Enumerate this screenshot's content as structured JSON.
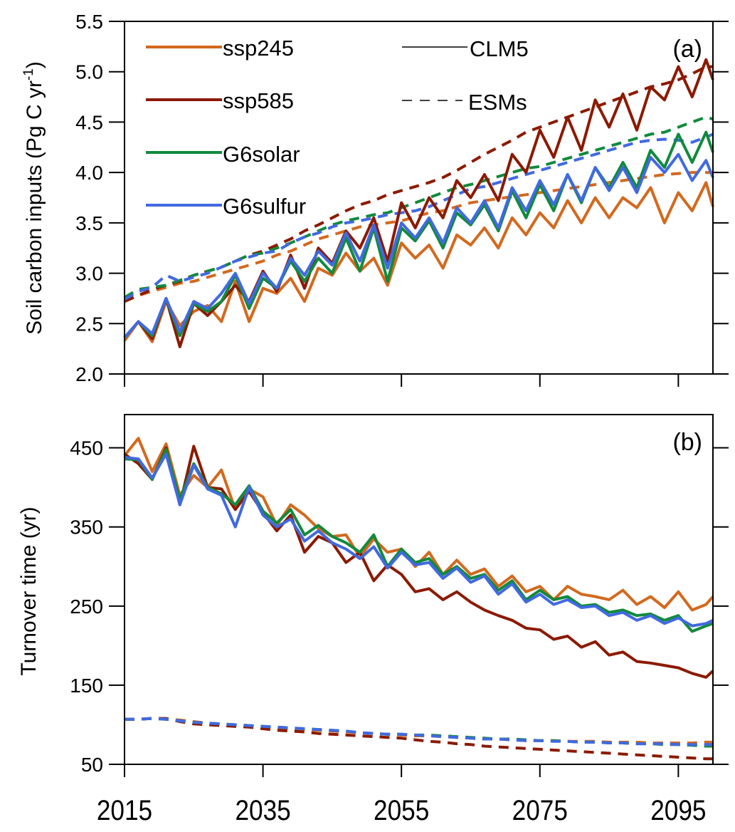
{
  "chart_data": [
    {
      "type": "line",
      "panel_label": "(a)",
      "title": "",
      "xlabel": "",
      "ylabel": "Soil carbon inputs (Pg C yr",
      "ylabel_superscript": "-1",
      "ylabel_suffix": ")",
      "xlim": [
        2015,
        2100
      ],
      "ylim": [
        2.0,
        5.5
      ],
      "yticks": [
        2.0,
        2.5,
        3.0,
        3.5,
        4.0,
        4.5,
        5.0,
        5.5
      ],
      "ytick_labels": [
        "2.0",
        "2.5",
        "3.0",
        "3.5",
        "4.0",
        "4.5",
        "5.0",
        "5.5"
      ],
      "xticks": [
        2015,
        2035,
        2055,
        2075,
        2095
      ],
      "grid": false,
      "legend": {
        "placement": "top-left",
        "scenarios": [
          {
            "label": "ssp245",
            "color": "#D2691E"
          },
          {
            "label": "ssp585",
            "color": "#8B1A00"
          },
          {
            "label": "G6solar",
            "color": "#118A3C"
          },
          {
            "label": "G6sulfur",
            "color": "#4169E1"
          }
        ],
        "models": [
          {
            "label": "CLM5",
            "style": "solid"
          },
          {
            "label": "ESMs",
            "style": "dashed"
          }
        ]
      },
      "x": [
        2015,
        2017,
        2019,
        2021,
        2023,
        2025,
        2027,
        2029,
        2031,
        2033,
        2035,
        2037,
        2039,
        2041,
        2043,
        2045,
        2047,
        2049,
        2051,
        2053,
        2055,
        2057,
        2059,
        2061,
        2063,
        2065,
        2067,
        2069,
        2071,
        2073,
        2075,
        2077,
        2079,
        2081,
        2083,
        2085,
        2087,
        2089,
        2091,
        2093,
        2095,
        2097,
        2099,
        2100
      ],
      "series": [
        {
          "name": "ssp245",
          "model": "CLM5",
          "color": "#D2691E",
          "style": "solid",
          "values": [
            2.33,
            2.52,
            2.32,
            2.72,
            2.48,
            2.62,
            2.68,
            2.52,
            2.92,
            2.52,
            2.85,
            2.8,
            2.95,
            2.72,
            3.05,
            2.98,
            3.2,
            3.02,
            3.15,
            2.88,
            3.3,
            3.15,
            3.28,
            3.05,
            3.38,
            3.28,
            3.45,
            3.25,
            3.55,
            3.38,
            3.6,
            3.45,
            3.72,
            3.5,
            3.75,
            3.55,
            3.75,
            3.65,
            3.85,
            3.5,
            3.8,
            3.62,
            3.9,
            3.66
          ]
        },
        {
          "name": "ssp585",
          "model": "CLM5",
          "color": "#8B1A00",
          "style": "solid",
          "values": [
            2.36,
            2.52,
            2.35,
            2.75,
            2.27,
            2.7,
            2.58,
            2.72,
            2.88,
            2.72,
            3.02,
            2.82,
            3.18,
            2.85,
            3.25,
            3.1,
            3.42,
            3.25,
            3.55,
            3.12,
            3.7,
            3.45,
            3.75,
            3.55,
            3.92,
            3.75,
            3.98,
            3.72,
            4.18,
            4.0,
            4.42,
            4.15,
            4.55,
            4.22,
            4.72,
            4.45,
            4.78,
            4.42,
            4.85,
            4.72,
            5.05,
            4.75,
            5.12,
            4.92
          ]
        },
        {
          "name": "G6solar",
          "model": "CLM5",
          "color": "#118A3C",
          "style": "solid",
          "values": [
            2.36,
            2.52,
            2.38,
            2.75,
            2.38,
            2.7,
            2.62,
            2.72,
            2.98,
            2.65,
            2.95,
            2.85,
            3.12,
            2.92,
            3.15,
            3.0,
            3.35,
            3.02,
            3.45,
            2.92,
            3.45,
            3.32,
            3.52,
            3.25,
            3.6,
            3.48,
            3.68,
            3.42,
            3.82,
            3.55,
            3.88,
            3.62,
            3.98,
            3.7,
            4.05,
            3.85,
            4.1,
            3.85,
            4.22,
            4.05,
            4.38,
            4.1,
            4.4,
            4.2
          ]
        },
        {
          "name": "G6sulfur",
          "model": "CLM5",
          "color": "#4169E1",
          "style": "solid",
          "values": [
            2.36,
            2.52,
            2.4,
            2.75,
            2.42,
            2.72,
            2.65,
            2.8,
            3.0,
            2.7,
            3.0,
            2.85,
            3.15,
            2.98,
            3.22,
            3.08,
            3.4,
            3.12,
            3.48,
            3.05,
            3.5,
            3.35,
            3.55,
            3.3,
            3.65,
            3.5,
            3.72,
            3.45,
            3.85,
            3.62,
            3.92,
            3.68,
            3.98,
            3.72,
            4.05,
            3.82,
            4.05,
            3.8,
            4.15,
            4.0,
            4.18,
            3.92,
            4.12,
            3.95
          ]
        },
        {
          "name": "ssp245",
          "model": "ESMs",
          "color": "#D2691E",
          "style": "dashed",
          "values": [
            2.72,
            2.78,
            2.82,
            2.86,
            2.9,
            2.92,
            2.96,
            3.0,
            3.04,
            3.08,
            3.12,
            3.18,
            3.22,
            3.28,
            3.34,
            3.38,
            3.42,
            3.46,
            3.48,
            3.5,
            3.52,
            3.56,
            3.6,
            3.62,
            3.66,
            3.7,
            3.72,
            3.74,
            3.76,
            3.78,
            3.8,
            3.82,
            3.84,
            3.86,
            3.88,
            3.9,
            3.92,
            3.94,
            3.96,
            3.98,
            3.99,
            4.0,
            4.0,
            4.0
          ]
        },
        {
          "name": "ssp585",
          "model": "ESMs",
          "color": "#8B1A00",
          "style": "dashed",
          "values": [
            2.72,
            2.78,
            2.84,
            2.88,
            2.92,
            2.98,
            3.02,
            3.06,
            3.12,
            3.18,
            3.22,
            3.28,
            3.34,
            3.42,
            3.48,
            3.55,
            3.62,
            3.68,
            3.72,
            3.78,
            3.82,
            3.86,
            3.9,
            3.95,
            4.02,
            4.1,
            4.18,
            4.25,
            4.32,
            4.4,
            4.45,
            4.5,
            4.55,
            4.6,
            4.65,
            4.7,
            4.75,
            4.8,
            4.85,
            4.88,
            4.92,
            4.98,
            5.05,
            5.05
          ]
        },
        {
          "name": "G6solar",
          "model": "ESMs",
          "color": "#118A3C",
          "style": "dashed",
          "values": [
            2.76,
            2.84,
            2.86,
            2.88,
            2.93,
            2.98,
            3.02,
            3.06,
            3.12,
            3.18,
            3.2,
            3.25,
            3.3,
            3.36,
            3.42,
            3.48,
            3.52,
            3.55,
            3.58,
            3.6,
            3.65,
            3.7,
            3.75,
            3.8,
            3.85,
            3.88,
            3.92,
            3.96,
            4.0,
            4.04,
            4.06,
            4.1,
            4.14,
            4.18,
            4.22,
            4.26,
            4.3,
            4.34,
            4.38,
            4.4,
            4.45,
            4.5,
            4.55,
            4.53
          ]
        },
        {
          "name": "G6sulfur",
          "model": "ESMs",
          "color": "#4169E1",
          "style": "dashed",
          "values": [
            2.74,
            2.82,
            2.86,
            2.98,
            2.92,
            2.96,
            3.0,
            3.06,
            3.12,
            3.16,
            3.2,
            3.22,
            3.3,
            3.36,
            3.4,
            3.46,
            3.5,
            3.52,
            3.55,
            3.58,
            3.6,
            3.62,
            3.66,
            3.72,
            3.78,
            3.84,
            3.86,
            3.9,
            3.94,
            3.98,
            4.02,
            4.06,
            4.1,
            4.14,
            4.18,
            4.22,
            4.26,
            4.3,
            4.32,
            4.33,
            4.32,
            4.3,
            4.35,
            4.38
          ]
        }
      ]
    },
    {
      "type": "line",
      "panel_label": "(b)",
      "title": "",
      "xlabel": "",
      "ylabel": "Turnover time (yr)",
      "xlim": [
        2015,
        2100
      ],
      "ylim": [
        50,
        492
      ],
      "yticks": [
        50,
        150,
        250,
        350,
        450
      ],
      "ytick_labels": [
        "50",
        "150",
        "250",
        "350",
        "450"
      ],
      "xticks": [
        2015,
        2035,
        2055,
        2075,
        2095
      ],
      "xtick_labels": [
        "2015",
        "2035",
        "2055",
        "2075",
        "2095"
      ],
      "grid": false,
      "x": [
        2015,
        2017,
        2019,
        2021,
        2023,
        2025,
        2027,
        2029,
        2031,
        2033,
        2035,
        2037,
        2039,
        2041,
        2043,
        2045,
        2047,
        2049,
        2051,
        2053,
        2055,
        2057,
        2059,
        2061,
        2063,
        2065,
        2067,
        2069,
        2071,
        2073,
        2075,
        2077,
        2079,
        2081,
        2083,
        2085,
        2087,
        2089,
        2091,
        2093,
        2095,
        2097,
        2099,
        2100
      ],
      "series": [
        {
          "name": "ssp245",
          "model": "CLM5",
          "color": "#D2691E",
          "style": "solid",
          "values": [
            440,
            462,
            420,
            455,
            390,
            415,
            400,
            422,
            372,
            398,
            388,
            352,
            378,
            365,
            348,
            338,
            340,
            312,
            335,
            318,
            322,
            300,
            318,
            290,
            308,
            290,
            297,
            275,
            288,
            268,
            275,
            258,
            275,
            265,
            262,
            258,
            270,
            252,
            262,
            248,
            268,
            245,
            252,
            262
          ]
        },
        {
          "name": "ssp585",
          "model": "CLM5",
          "color": "#8B1A00",
          "style": "solid",
          "values": [
            442,
            430,
            410,
            450,
            378,
            452,
            400,
            398,
            372,
            395,
            368,
            345,
            365,
            318,
            338,
            330,
            305,
            318,
            282,
            302,
            290,
            268,
            272,
            258,
            268,
            255,
            245,
            238,
            232,
            222,
            220,
            208,
            212,
            198,
            205,
            188,
            192,
            180,
            178,
            175,
            172,
            165,
            160,
            168
          ]
        },
        {
          "name": "G6solar",
          "model": "CLM5",
          "color": "#118A3C",
          "style": "solid",
          "values": [
            436,
            435,
            410,
            448,
            385,
            430,
            400,
            392,
            378,
            402,
            370,
            355,
            372,
            340,
            352,
            338,
            330,
            318,
            340,
            300,
            322,
            305,
            310,
            290,
            300,
            285,
            290,
            270,
            282,
            258,
            270,
            258,
            262,
            250,
            252,
            242,
            245,
            238,
            240,
            232,
            238,
            218,
            225,
            228
          ]
        },
        {
          "name": "G6sulfur",
          "model": "CLM5",
          "color": "#4169E1",
          "style": "solid",
          "values": [
            438,
            436,
            412,
            442,
            378,
            428,
            398,
            390,
            350,
            400,
            365,
            350,
            360,
            332,
            345,
            330,
            322,
            310,
            325,
            298,
            318,
            302,
            305,
            285,
            298,
            280,
            288,
            265,
            278,
            255,
            265,
            252,
            258,
            248,
            250,
            238,
            242,
            232,
            238,
            228,
            235,
            225,
            228,
            232
          ]
        },
        {
          "name": "ssp245",
          "model": "ESMs",
          "color": "#D2691E",
          "style": "dashed",
          "values": [
            107,
            107,
            108,
            107,
            106,
            104,
            102,
            101,
            100,
            99,
            98,
            96,
            95,
            94,
            93,
            92,
            91,
            90,
            89,
            88,
            87,
            86,
            86,
            85,
            84,
            83,
            82,
            82,
            81,
            80,
            80,
            80,
            79,
            79,
            79,
            78,
            78,
            78,
            77,
            77,
            77,
            77,
            78,
            78
          ]
        },
        {
          "name": "ssp585",
          "model": "ESMs",
          "color": "#8B1A00",
          "style": "dashed",
          "values": [
            107,
            107,
            108,
            108,
            104,
            101,
            100,
            99,
            98,
            97,
            95,
            93,
            92,
            91,
            89,
            88,
            87,
            86,
            85,
            84,
            83,
            81,
            79,
            78,
            76,
            75,
            73,
            72,
            71,
            70,
            69,
            68,
            67,
            66,
            65,
            64,
            63,
            62,
            61,
            60,
            59,
            58,
            57,
            57
          ]
        },
        {
          "name": "G6solar",
          "model": "ESMs",
          "color": "#118A3C",
          "style": "dashed",
          "values": [
            107,
            107,
            108,
            107,
            105,
            103,
            102,
            101,
            100,
            99,
            98,
            97,
            96,
            95,
            94,
            93,
            92,
            90,
            89,
            88,
            88,
            87,
            87,
            86,
            85,
            84,
            83,
            82,
            82,
            81,
            80,
            80,
            79,
            78,
            78,
            77,
            77,
            76,
            76,
            75,
            75,
            74,
            73,
            73
          ]
        },
        {
          "name": "G6sulfur",
          "model": "ESMs",
          "color": "#4169E1",
          "style": "dashed",
          "values": [
            107,
            107,
            108,
            107,
            105,
            103,
            102,
            101,
            100,
            99,
            98,
            97,
            96,
            95,
            94,
            93,
            92,
            90,
            89,
            88,
            88,
            87,
            86,
            85,
            84,
            83,
            82,
            82,
            81,
            80,
            80,
            79,
            79,
            78,
            78,
            77,
            77,
            76,
            76,
            76,
            75,
            75,
            75,
            75
          ]
        }
      ]
    }
  ]
}
